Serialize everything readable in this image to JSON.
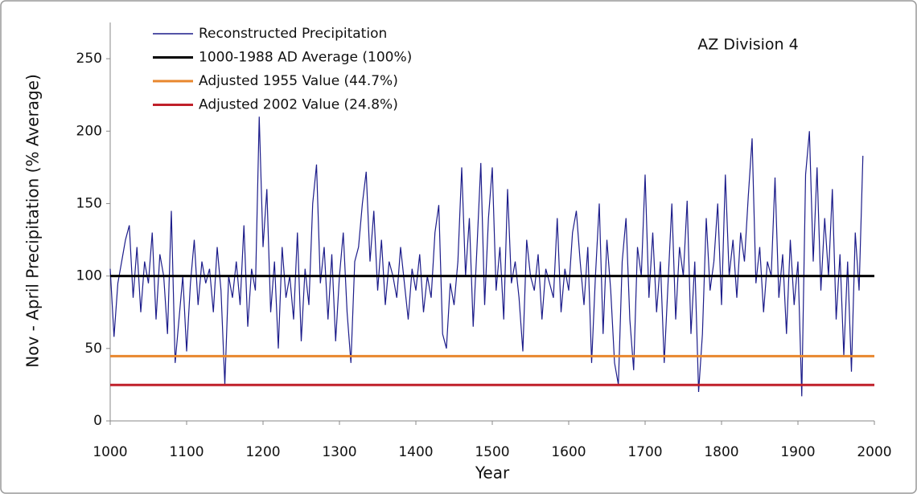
{
  "chart_data": {
    "type": "line",
    "annotation": "AZ Division 4",
    "x_label": "Year",
    "y_label": "Nov - April Precipitation (% Average)",
    "xlim": [
      1000,
      2000
    ],
    "xticks": [
      1000,
      1100,
      1200,
      1300,
      1400,
      1500,
      1600,
      1700,
      1800,
      1900,
      2000
    ],
    "ylim": [
      0,
      275
    ],
    "yticks": [
      0,
      50,
      100,
      150,
      200,
      250
    ],
    "legend": "top-left",
    "series": [
      {
        "name": "Reconstructed Precipitation",
        "color": "#1c1c8a",
        "x": [
          1000,
          1005,
          1010,
          1015,
          1020,
          1025,
          1030,
          1035,
          1040,
          1045,
          1050,
          1055,
          1060,
          1065,
          1070,
          1075,
          1080,
          1085,
          1090,
          1095,
          1100,
          1105,
          1110,
          1115,
          1120,
          1125,
          1130,
          1135,
          1140,
          1145,
          1150,
          1155,
          1160,
          1165,
          1170,
          1175,
          1180,
          1185,
          1190,
          1195,
          1200,
          1205,
          1210,
          1215,
          1220,
          1225,
          1230,
          1235,
          1240,
          1245,
          1250,
          1255,
          1260,
          1265,
          1270,
          1275,
          1280,
          1285,
          1290,
          1295,
          1300,
          1305,
          1310,
          1315,
          1320,
          1325,
          1330,
          1335,
          1340,
          1345,
          1350,
          1355,
          1360,
          1365,
          1370,
          1375,
          1380,
          1385,
          1390,
          1395,
          1400,
          1405,
          1410,
          1415,
          1420,
          1425,
          1430,
          1435,
          1440,
          1445,
          1450,
          1455,
          1460,
          1465,
          1470,
          1475,
          1480,
          1485,
          1490,
          1495,
          1500,
          1505,
          1510,
          1515,
          1520,
          1525,
          1530,
          1535,
          1540,
          1545,
          1550,
          1555,
          1560,
          1565,
          1570,
          1575,
          1580,
          1585,
          1590,
          1595,
          1600,
          1605,
          1610,
          1615,
          1620,
          1625,
          1630,
          1635,
          1640,
          1645,
          1650,
          1655,
          1660,
          1665,
          1670,
          1675,
          1680,
          1685,
          1690,
          1695,
          1700,
          1705,
          1710,
          1715,
          1720,
          1725,
          1730,
          1735,
          1740,
          1745,
          1750,
          1755,
          1760,
          1765,
          1770,
          1775,
          1780,
          1785,
          1790,
          1795,
          1800,
          1805,
          1810,
          1815,
          1820,
          1825,
          1830,
          1835,
          1840,
          1845,
          1850,
          1855,
          1860,
          1865,
          1870,
          1875,
          1880,
          1885,
          1890,
          1895,
          1900,
          1905,
          1910,
          1915,
          1920,
          1925,
          1930,
          1935,
          1940,
          1945,
          1950,
          1955,
          1960,
          1965,
          1970,
          1975,
          1980,
          1985
        ],
        "values": [
          105,
          58,
          95,
          110,
          125,
          135,
          85,
          120,
          75,
          110,
          95,
          130,
          70,
          115,
          100,
          60,
          145,
          40,
          70,
          100,
          48,
          95,
          125,
          80,
          110,
          95,
          105,
          75,
          120,
          90,
          25,
          100,
          85,
          110,
          80,
          135,
          65,
          105,
          90,
          210,
          120,
          160,
          75,
          110,
          50,
          120,
          85,
          100,
          70,
          130,
          55,
          105,
          80,
          150,
          177,
          95,
          120,
          70,
          115,
          55,
          100,
          130,
          75,
          40,
          110,
          120,
          150,
          172,
          110,
          145,
          90,
          125,
          80,
          110,
          100,
          85,
          120,
          95,
          70,
          105,
          90,
          115,
          75,
          100,
          85,
          130,
          149,
          60,
          50,
          95,
          80,
          110,
          175,
          100,
          140,
          65,
          120,
          178,
          80,
          140,
          175,
          90,
          120,
          70,
          160,
          95,
          110,
          85,
          48,
          125,
          100,
          90,
          115,
          70,
          105,
          95,
          85,
          140,
          75,
          105,
          90,
          130,
          145,
          110,
          80,
          120,
          40,
          100,
          150,
          60,
          125,
          90,
          40,
          25,
          110,
          140,
          70,
          35,
          120,
          100,
          170,
          85,
          130,
          75,
          110,
          40,
          95,
          150,
          70,
          120,
          100,
          152,
          60,
          110,
          20,
          60,
          140,
          90,
          110,
          150,
          80,
          170,
          100,
          125,
          85,
          130,
          110,
          155,
          195,
          95,
          120,
          75,
          110,
          100,
          168,
          85,
          115,
          60,
          125,
          80,
          110,
          17,
          170,
          200,
          110,
          175,
          90,
          140,
          100,
          160,
          70,
          115,
          45,
          110,
          34,
          130,
          90,
          183
        ]
      }
    ],
    "reference_lines": [
      {
        "name": "1000-1988 AD Average (100%)",
        "value": 100,
        "color": "#000000"
      },
      {
        "name": "Adjusted 1955 Value  (44.7%)",
        "value": 44.7,
        "color": "#e8872e"
      },
      {
        "name": "Adjusted 2002 Value  (24.8%)",
        "value": 24.8,
        "color": "#c0202a"
      }
    ]
  }
}
